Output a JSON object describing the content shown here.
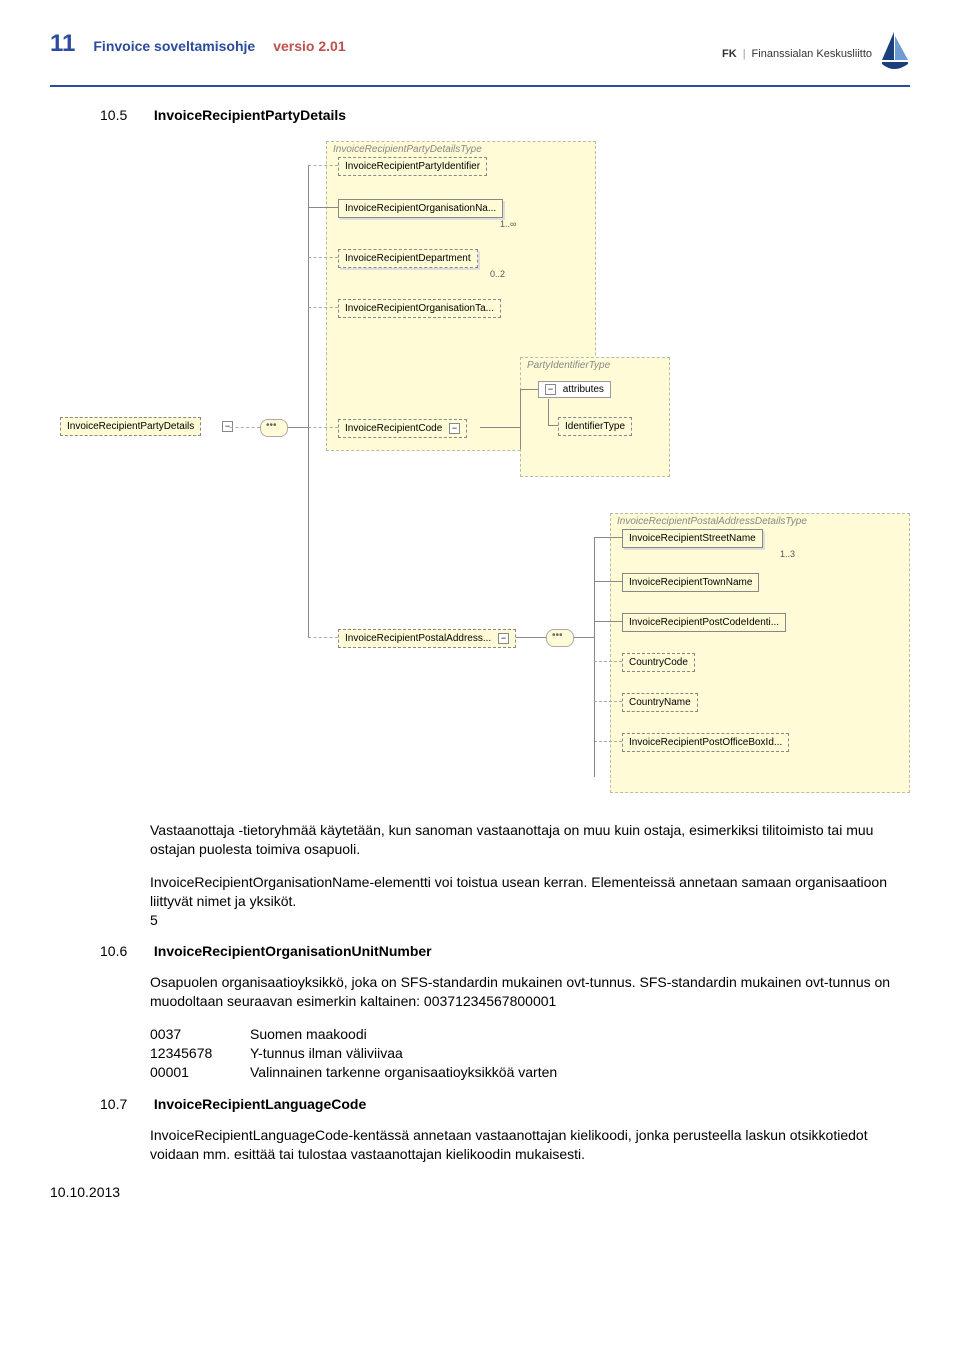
{
  "header": {
    "page_number": "11",
    "doc_title": "Finvoice soveltamisohje",
    "doc_version": "versio 2.01",
    "org_prefix": "FK",
    "org_text": "Finanssialan Keskusliitto",
    "logo_color": "#1b3f7a"
  },
  "style": {
    "accent_blue": "#2b4b9c",
    "accent_red": "#c0504d",
    "box_bg": "#fefbd6",
    "box_border": "#888888",
    "dashed_border": "#aaaaaa",
    "text_color": "#000000"
  },
  "section_10_5": {
    "num": "10.5",
    "title": "InvoiceRecipientPartyDetails",
    "para1": "Vastaanottaja -tietoryhmää käytetään, kun sanoman vastaanottaja on muu kuin ostaja, esimerkiksi tilitoimisto tai muu ostajan puolesta toimiva osapuoli.",
    "para2": "InvoiceRecipientOrganisationName-elementti voi toistua usean kerran. Elementeissä annetaan samaan organisaatioon liittyvät nimet ja yksiköt.",
    "para2_suffix": "5"
  },
  "section_10_6": {
    "num": "10.6",
    "title": "InvoiceRecipientOrganisationUnitNumber",
    "para1": "Osapuolen organisaatioyksikkö, joka on SFS-standardin mukainen ovt-tunnus. SFS-standardin mukainen ovt-tunnus on muodoltaan seuraavan esimerkin kaltainen: 00371234567800001",
    "rows": [
      {
        "code": "0037",
        "desc": "Suomen maakoodi"
      },
      {
        "code": "12345678",
        "desc": "Y-tunnus ilman väliviivaa"
      },
      {
        "code": "00001",
        "desc": "Valinnainen tarkenne organisaatioyksikköä varten"
      }
    ]
  },
  "section_10_7": {
    "num": "10.7",
    "title": "InvoiceRecipientLanguageCode",
    "para1": "InvoiceRecipientLanguageCode-kentässä annetaan vastaanottajan kielikoodi, jonka perusteella laskun otsikkotiedot voidaan mm. esittää tai tulostaa vastaanottajan kielikoodin mukaisesti."
  },
  "footer_date": "10.10.2013",
  "diagram": {
    "root": "InvoiceRecipientPartyDetails",
    "type1": {
      "label": "InvoiceRecipientPartyDetailsType",
      "items": [
        {
          "name": "InvoiceRecipientPartyIdentifier",
          "card": "",
          "dashed": true
        },
        {
          "name": "InvoiceRecipientOrganisationNa...",
          "card": "1..∞",
          "dashed": false
        },
        {
          "name": "InvoiceRecipientDepartment",
          "card": "0..2",
          "dashed": true
        },
        {
          "name": "InvoiceRecipientOrganisationTa...",
          "card": "",
          "dashed": true
        },
        {
          "name": "InvoiceRecipientCode",
          "card": "",
          "dashed": true,
          "has_toggle": true
        },
        {
          "name": "InvoiceRecipientPostalAddress...",
          "card": "",
          "dashed": true,
          "has_toggle": true
        }
      ]
    },
    "party_id_type": {
      "label": "PartyIdentifierType",
      "attr_box": "attributes",
      "attr_toggle": "−",
      "item": "IdentifierType"
    },
    "postal_type": {
      "label": "InvoiceRecipientPostalAddressDetailsType",
      "items": [
        {
          "name": "InvoiceRecipientStreetName",
          "card": "1..3",
          "dashed": false
        },
        {
          "name": "InvoiceRecipientTownName",
          "card": "",
          "dashed": false
        },
        {
          "name": "InvoiceRecipientPostCodeIdenti...",
          "card": "",
          "dashed": false
        },
        {
          "name": "CountryCode",
          "card": "",
          "dashed": true
        },
        {
          "name": "CountryName",
          "card": "",
          "dashed": true
        },
        {
          "name": "InvoiceRecipientPostOfficeBoxId...",
          "card": "",
          "dashed": true
        }
      ]
    }
  }
}
